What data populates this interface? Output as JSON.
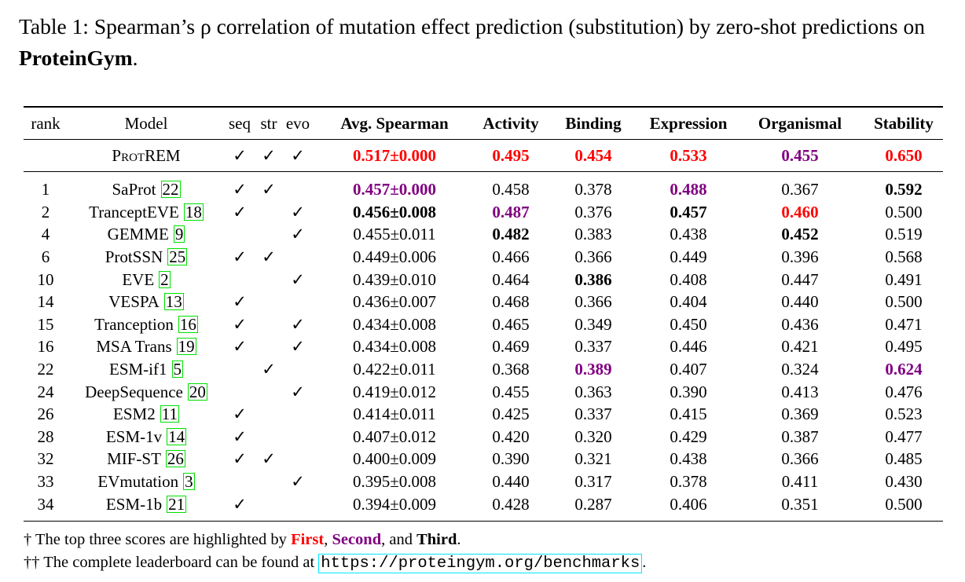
{
  "caption": {
    "prefix": "Table 1: Spearman’s ρ correlation of mutation effect prediction (substitution) by zero-shot predictions on ",
    "bold": "ProteinGym",
    "suffix": "."
  },
  "colors": {
    "first": "#ff0000",
    "second": "#800080",
    "third": "#000000"
  },
  "headers": [
    "rank",
    "Model",
    "seq",
    "str",
    "evo",
    "Avg. Spearman",
    "Activity",
    "Binding",
    "Expression",
    "Organismal",
    "Stability"
  ],
  "check_glyph": "✓",
  "ours": {
    "model": "ProtREM",
    "seq": true,
    "str": true,
    "evo": true,
    "values": [
      "0.517±0.000",
      "0.495",
      "0.454",
      "0.533",
      "0.455",
      "0.650"
    ],
    "highlight": [
      "first",
      "first",
      "first",
      "first",
      "second",
      "first"
    ]
  },
  "rows": [
    {
      "rank": "1",
      "model": "SaProt",
      "cite": "22",
      "seq": true,
      "str": true,
      "evo": false,
      "values": [
        "0.457±0.000",
        "0.458",
        "0.378",
        "0.488",
        "0.367",
        "0.592"
      ],
      "highlight": [
        "second",
        "",
        "",
        "second",
        "",
        "third"
      ]
    },
    {
      "rank": "2",
      "model": "TranceptEVE",
      "cite": "18",
      "seq": true,
      "str": false,
      "evo": true,
      "values": [
        "0.456±0.008",
        "0.487",
        "0.376",
        "0.457",
        "0.460",
        "0.500"
      ],
      "highlight": [
        "third",
        "second",
        "",
        "third",
        "first",
        ""
      ]
    },
    {
      "rank": "4",
      "model": "GEMME",
      "cite": "9",
      "seq": false,
      "str": false,
      "evo": true,
      "values": [
        "0.455±0.011",
        "0.482",
        "0.383",
        "0.438",
        "0.452",
        "0.519"
      ],
      "highlight": [
        "",
        "third",
        "",
        "",
        "third",
        ""
      ]
    },
    {
      "rank": "6",
      "model": "ProtSSN",
      "cite": "25",
      "seq": true,
      "str": true,
      "evo": false,
      "values": [
        "0.449±0.006",
        "0.466",
        "0.366",
        "0.449",
        "0.396",
        "0.568"
      ],
      "highlight": [
        "",
        "",
        "",
        "",
        "",
        ""
      ]
    },
    {
      "rank": "10",
      "model": "EVE",
      "cite": "2",
      "seq": false,
      "str": false,
      "evo": true,
      "values": [
        "0.439±0.010",
        "0.464",
        "0.386",
        "0.408",
        "0.447",
        "0.491"
      ],
      "highlight": [
        "",
        "",
        "third",
        "",
        "",
        ""
      ]
    },
    {
      "rank": "14",
      "model": "VESPA",
      "cite": "13",
      "seq": true,
      "str": false,
      "evo": false,
      "values": [
        "0.436±0.007",
        "0.468",
        "0.366",
        "0.404",
        "0.440",
        "0.500"
      ],
      "highlight": [
        "",
        "",
        "",
        "",
        "",
        ""
      ]
    },
    {
      "rank": "15",
      "model": "Tranception",
      "cite": "16",
      "seq": true,
      "str": false,
      "evo": true,
      "values": [
        "0.434±0.008",
        "0.465",
        "0.349",
        "0.450",
        "0.436",
        "0.471"
      ],
      "highlight": [
        "",
        "",
        "",
        "",
        "",
        ""
      ]
    },
    {
      "rank": "16",
      "model": "MSA Trans",
      "cite": "19",
      "seq": true,
      "str": false,
      "evo": true,
      "values": [
        "0.434±0.008",
        "0.469",
        "0.337",
        "0.446",
        "0.421",
        "0.495"
      ],
      "highlight": [
        "",
        "",
        "",
        "",
        "",
        ""
      ]
    },
    {
      "rank": "22",
      "model": "ESM-if1",
      "cite": "5",
      "seq": false,
      "str": true,
      "evo": false,
      "values": [
        "0.422±0.011",
        "0.368",
        "0.389",
        "0.407",
        "0.324",
        "0.624"
      ],
      "highlight": [
        "",
        "",
        "second",
        "",
        "",
        "second"
      ]
    },
    {
      "rank": "24",
      "model": "DeepSequence",
      "cite": "20",
      "seq": false,
      "str": false,
      "evo": true,
      "values": [
        "0.419±0.012",
        "0.455",
        "0.363",
        "0.390",
        "0.413",
        "0.476"
      ],
      "highlight": [
        "",
        "",
        "",
        "",
        "",
        ""
      ]
    },
    {
      "rank": "26",
      "model": "ESM2",
      "cite": "11",
      "seq": true,
      "str": false,
      "evo": false,
      "values": [
        "0.414±0.011",
        "0.425",
        "0.337",
        "0.415",
        "0.369",
        "0.523"
      ],
      "highlight": [
        "",
        "",
        "",
        "",
        "",
        ""
      ]
    },
    {
      "rank": "28",
      "model": "ESM-1v",
      "cite": "14",
      "seq": true,
      "str": false,
      "evo": false,
      "values": [
        "0.407±0.012",
        "0.420",
        "0.320",
        "0.429",
        "0.387",
        "0.477"
      ],
      "highlight": [
        "",
        "",
        "",
        "",
        "",
        ""
      ]
    },
    {
      "rank": "32",
      "model": "MIF-ST",
      "cite": "26",
      "seq": true,
      "str": true,
      "evo": false,
      "values": [
        "0.400±0.009",
        "0.390",
        "0.321",
        "0.438",
        "0.366",
        "0.485"
      ],
      "highlight": [
        "",
        "",
        "",
        "",
        "",
        ""
      ]
    },
    {
      "rank": "33",
      "model": "EVmutation",
      "cite": "3",
      "seq": false,
      "str": false,
      "evo": true,
      "values": [
        "0.395±0.008",
        "0.440",
        "0.317",
        "0.378",
        "0.411",
        "0.430"
      ],
      "highlight": [
        "",
        "",
        "",
        "",
        "",
        ""
      ]
    },
    {
      "rank": "34",
      "model": "ESM-1b",
      "cite": "21",
      "seq": true,
      "str": false,
      "evo": false,
      "values": [
        "0.394±0.009",
        "0.428",
        "0.287",
        "0.406",
        "0.351",
        "0.500"
      ],
      "highlight": [
        "",
        "",
        "",
        "",
        "",
        ""
      ]
    }
  ],
  "footnotes": {
    "note1": {
      "prefix": "† The top three scores are highlighted by ",
      "first": "First",
      "sep1": ", ",
      "second": "Second",
      "sep2": ", and ",
      "third": "Third",
      "suffix": "."
    },
    "note2": {
      "prefix": "†† The complete leaderboard can be found at ",
      "url": "https://proteingym.org/benchmarks",
      "suffix": "."
    }
  }
}
